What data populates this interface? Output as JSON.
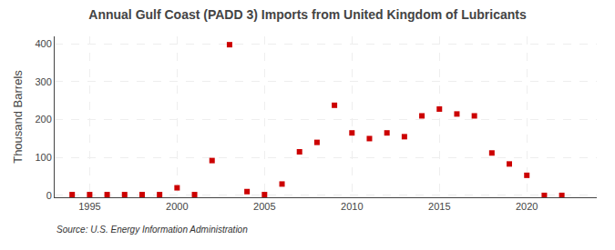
{
  "chart_data": {
    "type": "scatter",
    "title": "Annual Gulf Coast (PADD 3) Imports from United Kingdom of Lubricants",
    "ylabel": "Thousand Barrels",
    "annotations": [
      "Source: U.S. Energy Information Administration"
    ],
    "x": [
      1994,
      1995,
      1996,
      1997,
      1998,
      1999,
      2000,
      2001,
      2002,
      2003,
      2004,
      2005,
      2006,
      2007,
      2008,
      2009,
      2010,
      2011,
      2012,
      2013,
      2014,
      2015,
      2016,
      2017,
      2018,
      2019,
      2020,
      2021,
      2022
    ],
    "values": [
      2,
      2,
      2,
      2,
      2,
      2,
      20,
      2,
      92,
      398,
      10,
      2,
      30,
      115,
      140,
      238,
      165,
      150,
      165,
      155,
      210,
      228,
      215,
      210,
      112,
      83,
      53,
      0,
      0
    ],
    "color": "#cc0000",
    "marker": "square",
    "xlim": [
      1993,
      2024
    ],
    "xticks": [
      1995,
      2000,
      2005,
      2010,
      2015,
      2020
    ],
    "ylim": [
      -5,
      420
    ],
    "yticks": [
      0,
      100,
      200,
      300,
      400
    ],
    "grid": true
  }
}
